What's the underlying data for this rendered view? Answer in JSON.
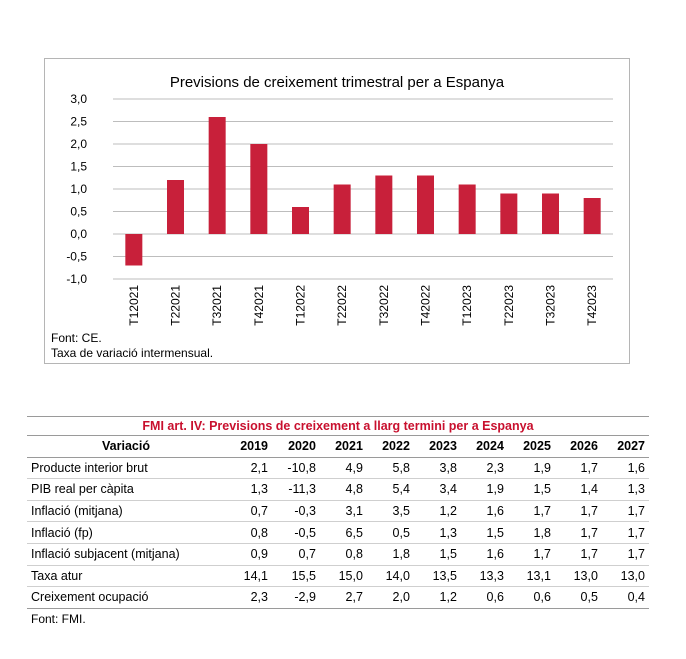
{
  "chart_data": {
    "type": "bar",
    "title": "Previsions de creixement trimestral per a Espanya",
    "categories": [
      "T12021",
      "T22021",
      "T32021",
      "T42021",
      "T12022",
      "T22022",
      "T32022",
      "T42022",
      "T12023",
      "T22023",
      "T32023",
      "T42023"
    ],
    "values": [
      -0.7,
      1.2,
      2.6,
      2.0,
      0.6,
      1.1,
      1.3,
      1.3,
      1.1,
      0.9,
      0.9,
      0.8
    ],
    "yticks": [
      "3,0",
      "2,5",
      "2,0",
      "1,5",
      "1,0",
      "0,5",
      "0,0",
      "-0,5",
      "-1,0"
    ],
    "ylim": [
      -1.0,
      3.0
    ],
    "xlabel": "",
    "ylabel": "",
    "bar_color": "#c8203a",
    "grid": true
  },
  "notes": {
    "source": "Font: CE.",
    "variation": "Taxa de variació intermensual."
  },
  "table": {
    "title": "FMI art. IV: Previsions de creixement a llarg termini per a Espanya",
    "header_label": "Variació",
    "years": [
      "2019",
      "2020",
      "2021",
      "2022",
      "2023",
      "2024",
      "2025",
      "2026",
      "2027"
    ],
    "rows": [
      {
        "label": "Producte interior brut",
        "values": [
          "2,1",
          "-10,8",
          "4,9",
          "5,8",
          "3,8",
          "2,3",
          "1,9",
          "1,7",
          "1,6"
        ]
      },
      {
        "label": "PIB real per càpita",
        "values": [
          "1,3",
          "-11,3",
          "4,8",
          "5,4",
          "3,4",
          "1,9",
          "1,5",
          "1,4",
          "1,3"
        ]
      },
      {
        "label": "Inflació (mitjana)",
        "values": [
          "0,7",
          "-0,3",
          "3,1",
          "3,5",
          "1,2",
          "1,6",
          "1,7",
          "1,7",
          "1,7"
        ]
      },
      {
        "label": "Inflació (fp)",
        "values": [
          "0,8",
          "-0,5",
          "6,5",
          "0,5",
          "1,3",
          "1,5",
          "1,8",
          "1,7",
          "1,7"
        ]
      },
      {
        "label": "Inflació subjacent (mitjana)",
        "values": [
          "0,9",
          "0,7",
          "0,8",
          "1,8",
          "1,5",
          "1,6",
          "1,7",
          "1,7",
          "1,7"
        ]
      },
      {
        "label": "Taxa atur",
        "values": [
          "14,1",
          "15,5",
          "15,0",
          "14,0",
          "13,5",
          "13,3",
          "13,1",
          "13,0",
          "13,0"
        ]
      },
      {
        "label": "Creixement ocupació",
        "values": [
          "2,3",
          "-2,9",
          "2,7",
          "2,0",
          "1,2",
          "0,6",
          "0,6",
          "0,5",
          "0,4"
        ]
      }
    ],
    "source": "Font: FMI."
  }
}
